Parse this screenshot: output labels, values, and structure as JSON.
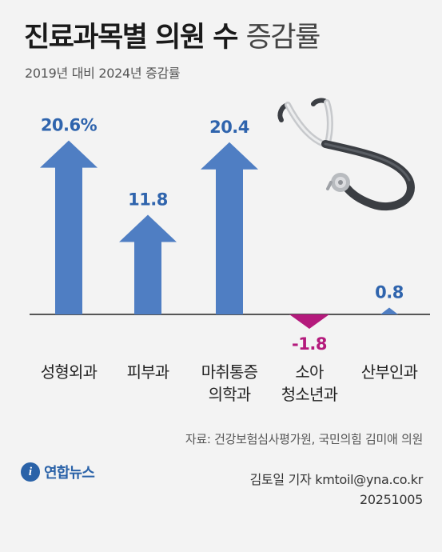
{
  "header": {
    "title_bold": "진료과목별 의원 수",
    "title_light": "증감률",
    "subtitle": "2019년 대비 2024년 증감률"
  },
  "chart_data": {
    "type": "bar",
    "categories": [
      [
        "성형외과"
      ],
      [
        "피부과"
      ],
      [
        "마취통증",
        "의학과"
      ],
      [
        "소아",
        "청소년과"
      ],
      [
        "산부인과"
      ]
    ],
    "values": [
      20.6,
      11.8,
      20.4,
      -1.8,
      0.8
    ],
    "value_labels": [
      "20.6%",
      "11.8",
      "20.4",
      "-1.8",
      "0.8"
    ],
    "unit": "%",
    "colors": {
      "positive": "#4f7ec3",
      "negative": "#b41a7c",
      "axis": "#222222",
      "positive_label": "#2f64ad",
      "negative_label": "#b41a7c"
    },
    "ylim": [
      -3,
      25
    ],
    "grid": false
  },
  "decor": {
    "icon": "stethoscope-icon"
  },
  "footer": {
    "source": "자료: 건강보험심사평가원, 국민의힘 김미애 의원",
    "logo_mark": "i",
    "logo_text": "연합뉴스",
    "reporter": "김토일 기자 kmtoil@yna.co.kr",
    "date": "20251005"
  }
}
